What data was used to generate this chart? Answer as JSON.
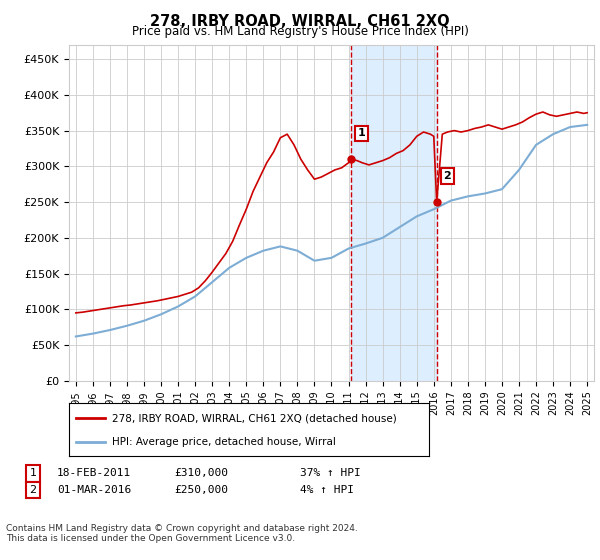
{
  "title": "278, IRBY ROAD, WIRRAL, CH61 2XQ",
  "subtitle": "Price paid vs. HM Land Registry's House Price Index (HPI)",
  "ylabel_ticks": [
    "£0",
    "£50K",
    "£100K",
    "£150K",
    "£200K",
    "£250K",
    "£300K",
    "£350K",
    "£400K",
    "£450K"
  ],
  "ytick_vals": [
    0,
    50000,
    100000,
    150000,
    200000,
    250000,
    300000,
    350000,
    400000,
    450000
  ],
  "ylim_max": 470000,
  "xlim_start": 1994.6,
  "xlim_end": 2025.4,
  "sale1_year": 2011.12,
  "sale1_price": 310000,
  "sale1_label": "1",
  "sale1_date": "18-FEB-2011",
  "sale1_hpi": "37% ↑ HPI",
  "sale2_year": 2016.17,
  "sale2_price": 250000,
  "sale2_label": "2",
  "sale2_date": "01-MAR-2016",
  "sale2_hpi": "4% ↑ HPI",
  "legend_line1": "278, IRBY ROAD, WIRRAL, CH61 2XQ (detached house)",
  "legend_line2": "HPI: Average price, detached house, Wirral",
  "footer": "Contains HM Land Registry data © Crown copyright and database right 2024.\nThis data is licensed under the Open Government Licence v3.0.",
  "sale_color": "#cc0000",
  "hpi_color": "#7dadd4",
  "highlight_fill": "#ddeeff",
  "grid_color": "#cccccc",
  "background_color": "#ffffff",
  "hpi_x": [
    1995,
    1996,
    1997,
    1998,
    1999,
    2000,
    2001,
    2002,
    2003,
    2004,
    2005,
    2006,
    2007,
    2008,
    2009,
    2010,
    2011,
    2012,
    2013,
    2014,
    2015,
    2016,
    2017,
    2018,
    2019,
    2020,
    2021,
    2022,
    2023,
    2024,
    2025
  ],
  "hpi_values": [
    62000,
    66000,
    71000,
    77000,
    84000,
    93000,
    104000,
    118000,
    138000,
    158000,
    172000,
    182000,
    188000,
    182000,
    168000,
    172000,
    185000,
    192000,
    200000,
    215000,
    230000,
    240000,
    252000,
    258000,
    262000,
    268000,
    295000,
    330000,
    345000,
    355000,
    358000
  ],
  "property_x": [
    1995.0,
    1995.4,
    1995.8,
    1996.2,
    1996.6,
    1997.0,
    1997.4,
    1997.8,
    1998.2,
    1998.6,
    1999.0,
    1999.4,
    1999.8,
    2000.2,
    2000.6,
    2001.0,
    2001.4,
    2001.8,
    2002.2,
    2002.6,
    2003.0,
    2003.4,
    2003.8,
    2004.2,
    2004.6,
    2005.0,
    2005.4,
    2005.8,
    2006.2,
    2006.6,
    2007.0,
    2007.4,
    2007.8,
    2008.2,
    2008.6,
    2009.0,
    2009.4,
    2009.8,
    2010.2,
    2010.6,
    2011.0,
    2011.12,
    2011.5,
    2011.8,
    2012.2,
    2012.6,
    2013.0,
    2013.4,
    2013.8,
    2014.2,
    2014.6,
    2015.0,
    2015.4,
    2015.8,
    2016.0,
    2016.17,
    2016.5,
    2016.8,
    2017.2,
    2017.6,
    2018.0,
    2018.4,
    2018.8,
    2019.2,
    2019.6,
    2020.0,
    2020.4,
    2020.8,
    2021.2,
    2021.6,
    2022.0,
    2022.4,
    2022.8,
    2023.2,
    2023.6,
    2024.0,
    2024.4,
    2024.8,
    2025.0
  ],
  "property_y": [
    95000,
    96000,
    97500,
    99000,
    100500,
    102000,
    103500,
    105000,
    106000,
    107500,
    109000,
    110500,
    112000,
    114000,
    116000,
    118000,
    121000,
    124000,
    130000,
    140000,
    152000,
    165000,
    178000,
    195000,
    218000,
    240000,
    265000,
    285000,
    305000,
    320000,
    340000,
    345000,
    330000,
    310000,
    295000,
    282000,
    285000,
    290000,
    295000,
    298000,
    305000,
    310000,
    308000,
    305000,
    302000,
    305000,
    308000,
    312000,
    318000,
    322000,
    330000,
    342000,
    348000,
    345000,
    342000,
    250000,
    345000,
    348000,
    350000,
    348000,
    350000,
    353000,
    355000,
    358000,
    355000,
    352000,
    355000,
    358000,
    362000,
    368000,
    373000,
    376000,
    372000,
    370000,
    372000,
    374000,
    376000,
    374000,
    375000
  ]
}
